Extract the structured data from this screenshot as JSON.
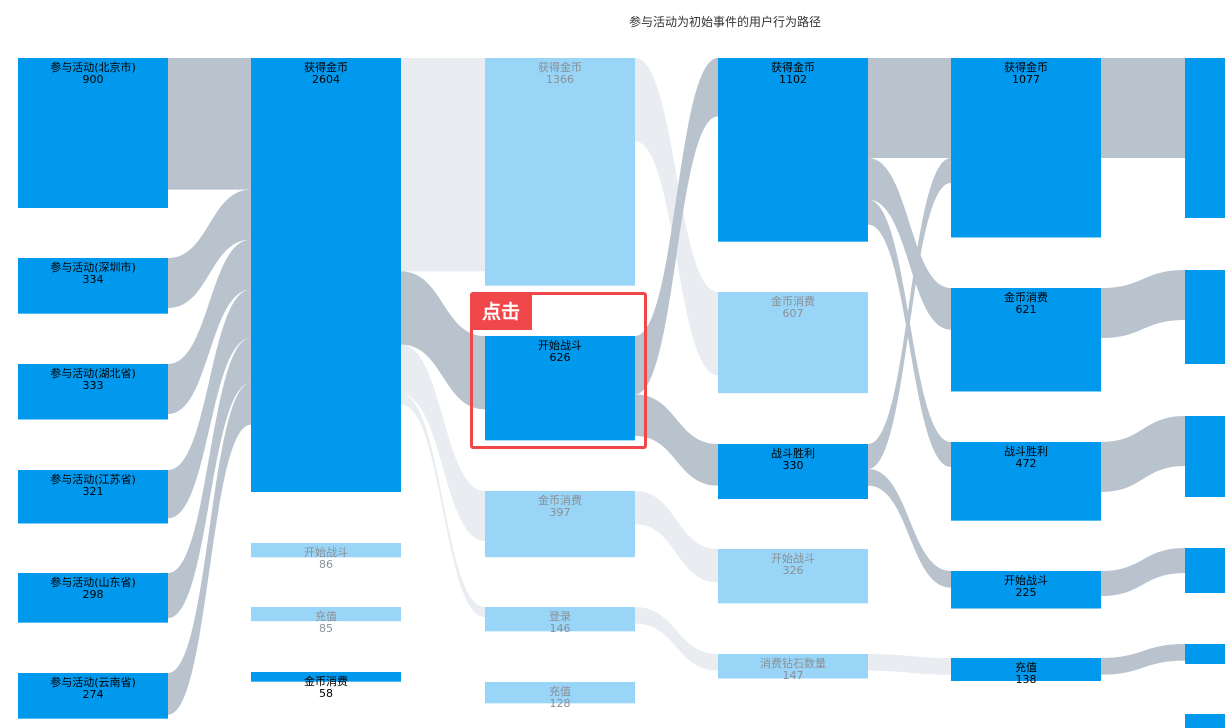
{
  "title": "参与活动为初始事件的用户行为路径",
  "colors": {
    "node_active": "#0099ee",
    "node_faded": "#99d5f7",
    "link_active": "#b8c3ce",
    "link_faded": "#e9edf1",
    "highlight": "#f0474b"
  },
  "highlight_label": "点击",
  "columns": [
    {
      "nodes": [
        {
          "name": "参与活动(北京市)",
          "value": 900,
          "active": true
        },
        {
          "name": "参与活动(深圳市)",
          "value": 334,
          "active": true
        },
        {
          "name": "参与活动(湖北省)",
          "value": 333,
          "active": true
        },
        {
          "name": "参与活动(江苏省)",
          "value": 321,
          "active": true
        },
        {
          "name": "参与活动(山东省)",
          "value": 298,
          "active": true
        },
        {
          "name": "参与活动(云南省)",
          "value": 274,
          "active": true
        }
      ]
    },
    {
      "nodes": [
        {
          "name": "获得金币",
          "value": 2604,
          "active": true
        },
        {
          "name": "开始战斗",
          "value": 86,
          "active": false
        },
        {
          "name": "充值",
          "value": 85,
          "active": false
        },
        {
          "name": "金币消费",
          "value": 58,
          "active": true
        }
      ]
    },
    {
      "nodes": [
        {
          "name": "获得金币",
          "value": 1366,
          "active": false
        },
        {
          "name": "开始战斗",
          "value": 626,
          "active": true
        },
        {
          "name": "金币消费",
          "value": 397,
          "active": false
        },
        {
          "name": "登录",
          "value": 146,
          "active": false
        },
        {
          "name": "充值",
          "value": 128,
          "active": false
        }
      ]
    },
    {
      "nodes": [
        {
          "name": "获得金币",
          "value": 1102,
          "active": true
        },
        {
          "name": "金币消费",
          "value": 607,
          "active": false
        },
        {
          "name": "战斗胜利",
          "value": 330,
          "active": true
        },
        {
          "name": "开始战斗",
          "value": 326,
          "active": false
        },
        {
          "name": "消费钻石数量",
          "value": 147,
          "active": false
        }
      ]
    },
    {
      "nodes": [
        {
          "name": "获得金币",
          "value": 1077,
          "active": true
        },
        {
          "name": "金币消费",
          "value": 621,
          "active": true
        },
        {
          "name": "战斗胜利",
          "value": 472,
          "active": true
        },
        {
          "name": "开始战斗",
          "value": 225,
          "active": true
        },
        {
          "name": "充值",
          "value": 138,
          "active": true
        }
      ]
    }
  ],
  "links": [
    {
      "s": [
        0,
        0
      ],
      "t": [
        1,
        0
      ],
      "v": 790,
      "active": true
    },
    {
      "s": [
        0,
        1
      ],
      "t": [
        1,
        0
      ],
      "v": 300,
      "active": true
    },
    {
      "s": [
        0,
        2
      ],
      "t": [
        1,
        0
      ],
      "v": 300,
      "active": true
    },
    {
      "s": [
        0,
        3
      ],
      "t": [
        1,
        0
      ],
      "v": 290,
      "active": true
    },
    {
      "s": [
        0,
        4
      ],
      "t": [
        1,
        0
      ],
      "v": 270,
      "active": true
    },
    {
      "s": [
        0,
        5
      ],
      "t": [
        1,
        0
      ],
      "v": 250,
      "active": true
    },
    {
      "s": [
        1,
        0
      ],
      "t": [
        2,
        0
      ],
      "v": 1280,
      "active": false
    },
    {
      "s": [
        1,
        0
      ],
      "t": [
        2,
        1
      ],
      "v": 440,
      "active": true
    },
    {
      "s": [
        1,
        0
      ],
      "t": [
        2,
        2
      ],
      "v": 300,
      "active": false
    },
    {
      "s": [
        1,
        0
      ],
      "t": [
        2,
        3
      ],
      "v": 60,
      "active": false
    },
    {
      "s": [
        2,
        0
      ],
      "t": [
        3,
        1
      ],
      "v": 500,
      "active": false
    },
    {
      "s": [
        2,
        1
      ],
      "t": [
        3,
        0
      ],
      "v": 350,
      "active": true
    },
    {
      "s": [
        2,
        1
      ],
      "t": [
        3,
        2
      ],
      "v": 250,
      "active": true
    },
    {
      "s": [
        2,
        2
      ],
      "t": [
        3,
        3
      ],
      "v": 200,
      "active": false
    },
    {
      "s": [
        2,
        3
      ],
      "t": [
        3,
        4
      ],
      "v": 100,
      "active": false
    },
    {
      "s": [
        3,
        0
      ],
      "t": [
        4,
        0
      ],
      "v": 600,
      "active": true
    },
    {
      "s": [
        3,
        0
      ],
      "t": [
        4,
        1
      ],
      "v": 250,
      "active": true
    },
    {
      "s": [
        3,
        0
      ],
      "t": [
        4,
        2
      ],
      "v": 150,
      "active": true
    },
    {
      "s": [
        3,
        2
      ],
      "t": [
        4,
        0
      ],
      "v": 150,
      "active": true
    },
    {
      "s": [
        3,
        2
      ],
      "t": [
        4,
        3
      ],
      "v": 100,
      "active": true
    },
    {
      "s": [
        3,
        4
      ],
      "t": [
        4,
        4
      ],
      "v": 100,
      "active": false
    },
    {
      "s": [
        4,
        0
      ],
      "t": [
        5,
        0
      ],
      "v": 600,
      "active": true
    },
    {
      "s": [
        4,
        1
      ],
      "t": [
        5,
        1
      ],
      "v": 300,
      "active": true
    },
    {
      "s": [
        4,
        2
      ],
      "t": [
        5,
        2
      ],
      "v": 300,
      "active": true
    },
    {
      "s": [
        4,
        3
      ],
      "t": [
        5,
        3
      ],
      "v": 150,
      "active": true
    },
    {
      "s": [
        4,
        4
      ],
      "t": [
        5,
        4
      ],
      "v": 100,
      "active": true
    }
  ]
}
